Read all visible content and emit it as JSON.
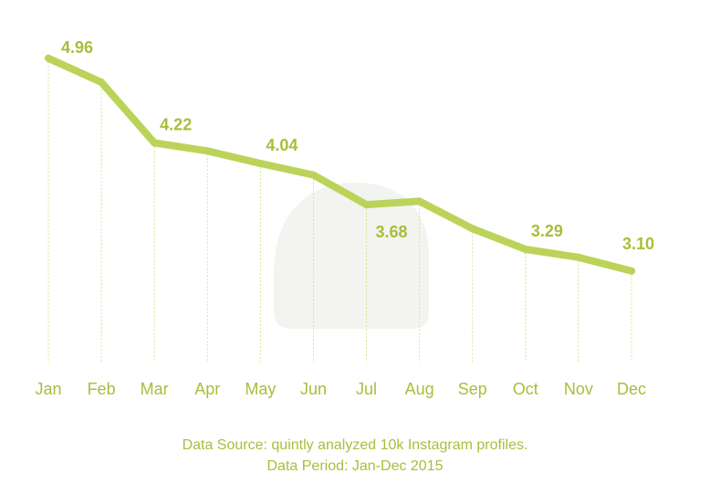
{
  "chart_data": {
    "type": "line",
    "categories": [
      "Jan",
      "Feb",
      "Mar",
      "Apr",
      "May",
      "Jun",
      "Jul",
      "Aug",
      "Sep",
      "Oct",
      "Nov",
      "Dec"
    ],
    "values": [
      4.96,
      4.75,
      4.22,
      4.15,
      4.04,
      3.94,
      3.68,
      3.71,
      3.47,
      3.29,
      3.22,
      3.1
    ],
    "data_labels": [
      {
        "index": 0,
        "text": "4.96"
      },
      {
        "index": 2,
        "text": "4.22"
      },
      {
        "index": 4,
        "text": "4.04"
      },
      {
        "index": 6,
        "text": "3.68"
      },
      {
        "index": 9,
        "text": "3.29"
      },
      {
        "index": 11,
        "text": "3.10"
      }
    ],
    "ylim": [
      2.3,
      5.15
    ],
    "line_color": "#bcd35a",
    "label_color": "#a6bf3b",
    "grid": false,
    "xlabel": "",
    "ylabel": ""
  },
  "footer": {
    "source": "Data Source: quintly analyzed 10k Instagram profiles.",
    "period": "Data Period: Jan-Dec 2015"
  }
}
